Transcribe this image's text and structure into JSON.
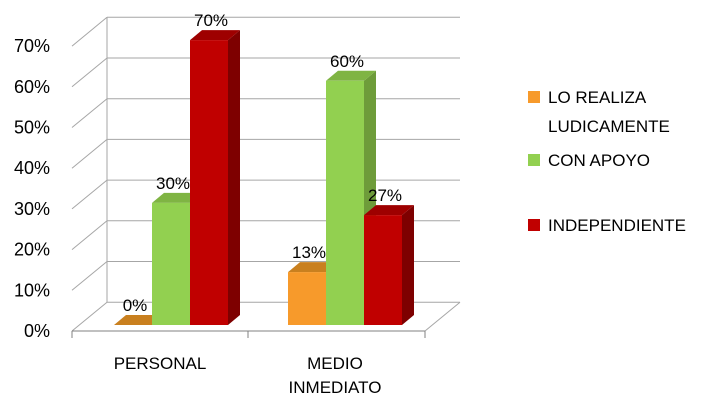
{
  "chart_data": {
    "type": "bar",
    "categories": [
      "PERSONAL",
      "MEDIO INMEDIATO"
    ],
    "series": [
      {
        "name": "LO REALIZA LUDICAMENTE",
        "values": [
          0,
          13
        ],
        "labels": [
          "0%",
          "13%"
        ]
      },
      {
        "name": "CON APOYO",
        "values": [
          30,
          60
        ],
        "labels": [
          "30%",
          "60%"
        ]
      },
      {
        "name": "INDEPENDIENTE",
        "values": [
          70,
          27
        ],
        "labels": [
          "70%",
          "27%"
        ]
      }
    ],
    "y_ticks": [
      "0%",
      "10%",
      "20%",
      "30%",
      "40%",
      "50%",
      "60%",
      "70%"
    ],
    "ylim": [
      0,
      70
    ],
    "grid": true,
    "legend_position": "right",
    "style": "3d-clustered-column"
  },
  "colors": {
    "series": [
      {
        "front": "#F79A2B",
        "side": "#B8711E",
        "top": "#C9801F"
      },
      {
        "front": "#92D050",
        "side": "#6E9C3A",
        "top": "#7FB443"
      },
      {
        "front": "#C00000",
        "side": "#7E0000",
        "top": "#9E0000"
      }
    ],
    "grid": "#A6A6A6",
    "axis": "#808080"
  }
}
